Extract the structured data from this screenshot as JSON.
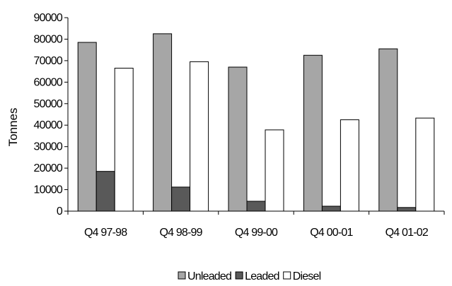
{
  "chart_data": {
    "type": "bar",
    "title": "",
    "xlabel": "",
    "ylabel": "Tonnes",
    "ylim": [
      0,
      90000
    ],
    "ytick_step": 10000,
    "grid": false,
    "legend_position": "bottom",
    "categories": [
      "Q4 97-98",
      "Q4 98-99",
      "Q4 99-00",
      "Q4 00-01",
      "Q4 01-02"
    ],
    "series": [
      {
        "name": "Unleaded",
        "color": "#a6a6a6",
        "values": [
          78500,
          82500,
          67000,
          72500,
          75500
        ]
      },
      {
        "name": "Leaded",
        "color": "#595959",
        "values": [
          18500,
          11200,
          4600,
          2300,
          1700
        ]
      },
      {
        "name": "Diesel",
        "color": "#ffffff",
        "values": [
          66500,
          69500,
          37800,
          42500,
          43300
        ]
      }
    ]
  }
}
